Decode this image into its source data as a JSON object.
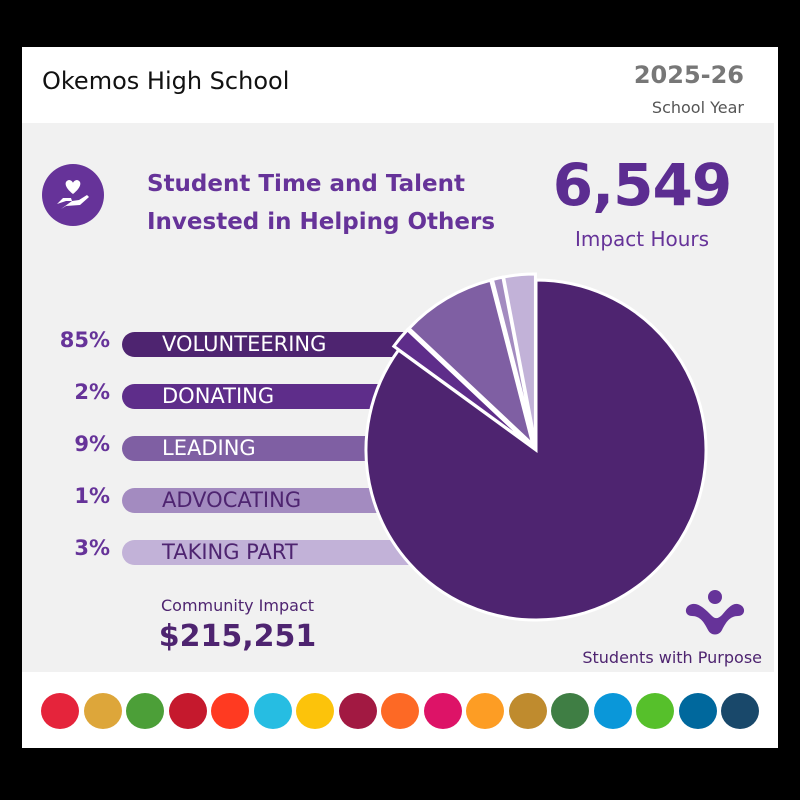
{
  "header": {
    "school": "Okemos High School",
    "year": "2025-26",
    "year_label": "School Year"
  },
  "headline": {
    "line1": "Student Time and Talent",
    "line2": "Invested in Helping Others",
    "icon": "heart-in-hand-icon"
  },
  "impact": {
    "hours": "6,549",
    "hours_label": "Impact Hours"
  },
  "chart_data": {
    "type": "pie",
    "categories": [
      "VOLUNTEERING",
      "DONATING",
      "LEADING",
      "ADVOCATING",
      "TAKING PART"
    ],
    "values": [
      85,
      2,
      9,
      1,
      3
    ],
    "labels": [
      "85%",
      "2%",
      "9%",
      "1%",
      "3%"
    ],
    "colors": [
      "#4e2470",
      "#5e2d8a",
      "#7f5fa3",
      "#a38bc0",
      "#c2b2d8"
    ],
    "text_colors": [
      "#ffffff",
      "#ffffff",
      "#ffffff",
      "#4e2470",
      "#4e2470"
    ]
  },
  "community": {
    "label": "Community Impact",
    "value": "$215,251"
  },
  "brand": {
    "name": "Students with Purpose",
    "icon": "students-with-purpose-logo"
  },
  "sdg_colors": [
    "#e5243b",
    "#dda63a",
    "#4c9f38",
    "#c5192d",
    "#ff3a21",
    "#26bde2",
    "#fcc30b",
    "#a21942",
    "#fd6925",
    "#dd1367",
    "#fd9d24",
    "#bf8b2e",
    "#3f7e44",
    "#0a97d9",
    "#56c02b",
    "#00689d",
    "#19486a"
  ],
  "sdg_icons": [
    "no-poverty-icon",
    "zero-hunger-icon",
    "good-health-icon",
    "quality-education-icon",
    "gender-equality-icon",
    "clean-water-icon",
    "clean-energy-icon",
    "decent-work-icon",
    "industry-innovation-icon",
    "reduced-inequalities-icon",
    "sustainable-cities-icon",
    "responsible-consumption-icon",
    "climate-action-icon",
    "life-below-water-icon",
    "life-on-land-icon",
    "peace-justice-icon",
    "partnerships-icon"
  ]
}
